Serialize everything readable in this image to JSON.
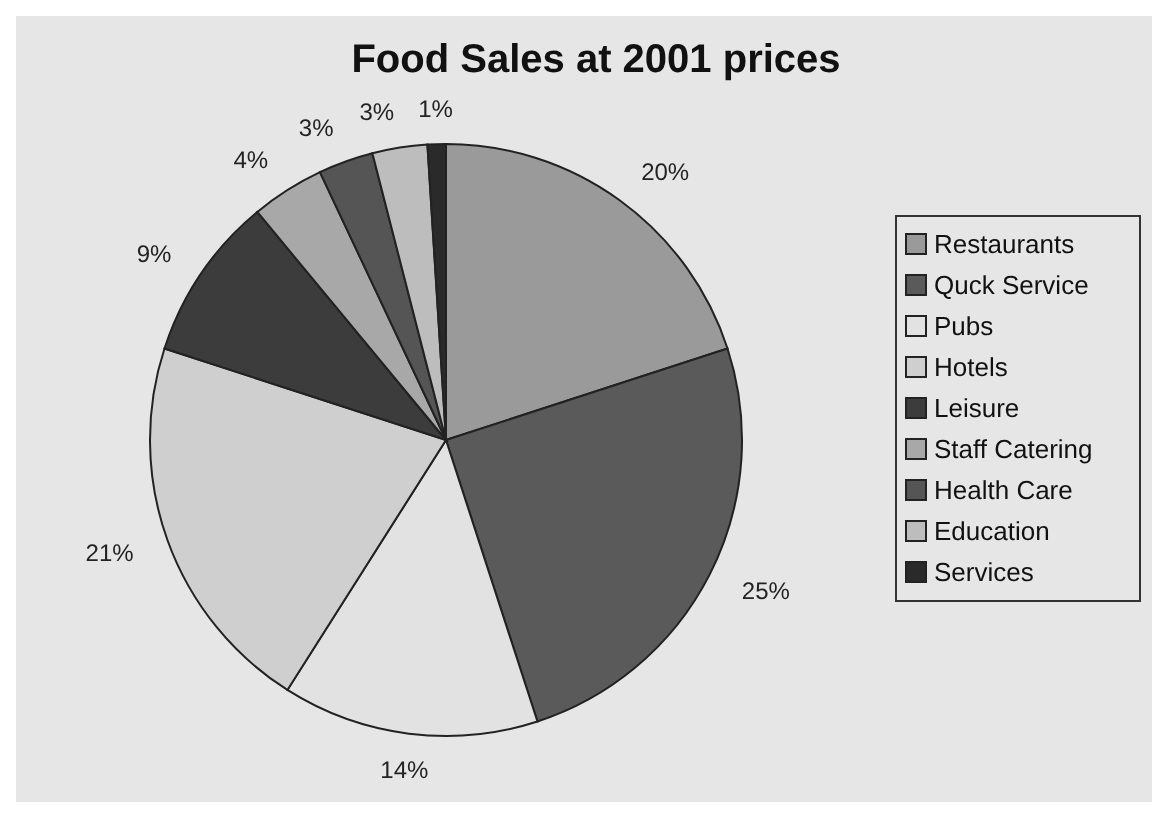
{
  "chart_data": {
    "type": "pie",
    "title": "Food Sales at 2001 prices",
    "categories": [
      "Restaurants",
      "Quck Service",
      "Pubs",
      "Hotels",
      "Leisure",
      "Staff Catering",
      "Health Care",
      "Education",
      "Services"
    ],
    "values": [
      20,
      25,
      14,
      21,
      9,
      4,
      3,
      3,
      1
    ],
    "value_labels": [
      "20%",
      "25%",
      "14%",
      "21%",
      "9%",
      "4%",
      "3%",
      "3%",
      "1%"
    ],
    "colors": [
      "#9a9a9a",
      "#5a5a5a",
      "#e2e2e2",
      "#cfcfcf",
      "#3c3c3c",
      "#a8a8a8",
      "#555555",
      "#bdbdbd",
      "#2a2a2a"
    ],
    "legend": "right"
  }
}
